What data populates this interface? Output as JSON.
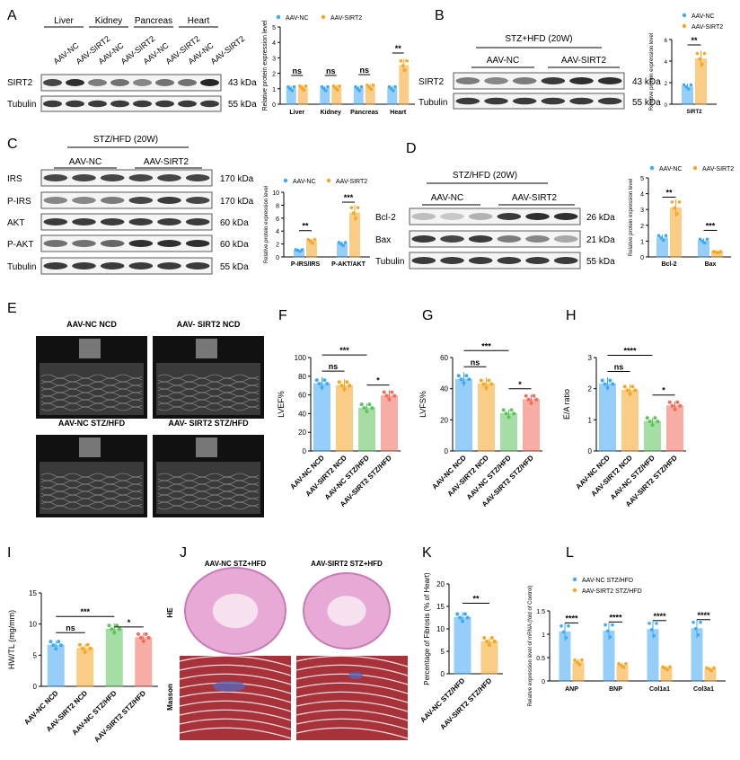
{
  "figure": {
    "panel_letters": [
      "A",
      "B",
      "C",
      "D",
      "E",
      "F",
      "G",
      "H",
      "I",
      "J",
      "K",
      "L"
    ],
    "colors": {
      "nc_blue": "#3fa9f5",
      "sirt2_orange": "#f5a623",
      "stz_nc_green": "#5cc45c",
      "stz_sirt2_red": "#f26b5b",
      "blot_band": "#1a1a1a",
      "he_pink": "#e7a9d6",
      "masson_red": "#a8323a"
    },
    "sig_marks": {
      "ns": "ns",
      "p01": "**",
      "p005": "*",
      "p001": "***",
      "p0001": "****"
    },
    "legend": {
      "nc": "AAV-NC",
      "sirt2": "AAV-SIRT2",
      "nc_stz": "AAV-NC STZ/HFD",
      "sirt2_stz": "AAV-SIRT2 STZ/HFD"
    }
  },
  "panelA": {
    "tissues": [
      "Liver",
      "Kidney",
      "Pancreas",
      "Heart"
    ],
    "lanes": [
      "AAV-NC",
      "AAV-SIRT2",
      "AAV-NC",
      "AAV-SIRT2",
      "AAV-NC",
      "AAV-SIRT2",
      "AAV-NC",
      "AAV-SIRT2"
    ],
    "rows": [
      "SIRT2",
      "Tubulin"
    ],
    "sizes": [
      "43 kDa",
      "55 kDa"
    ],
    "ylabel": "Relative protein expression level",
    "sigs": [
      "ns",
      "ns",
      "ns",
      "**"
    ]
  },
  "panelB": {
    "title": "STZ+HFD (20W)",
    "groups": [
      "AAV-NC",
      "AAV-SIRT2"
    ],
    "rows": [
      "SIRT2",
      "Tubulin"
    ],
    "sizes": [
      "43 kDa",
      "55 kDa"
    ],
    "ylabel": "Relative protein expression level",
    "xcat": "SIRT2",
    "sig": "**"
  },
  "panelC": {
    "title": "STZ/HFD (20W)",
    "groups": [
      "AAV-NC",
      "AAV-SIRT2"
    ],
    "rows": [
      "IRS",
      "P-IRS",
      "AKT",
      "P-AKT",
      "Tubulin"
    ],
    "sizes": [
      "170 kDa",
      "170 kDa",
      "60 kDa",
      "60 kDa",
      "55 kDa"
    ],
    "ylabel": "Relative protein expression level",
    "xcats": [
      "P-IRS/IRS",
      "P-AKT/AKT"
    ],
    "sigs": [
      "**",
      "***"
    ]
  },
  "panelD": {
    "title": "STZ/HFD (20W)",
    "groups": [
      "AAV-NC",
      "AAV-SIRT2"
    ],
    "rows": [
      "Bcl-2",
      "Bax",
      "Tubulin"
    ],
    "sizes": [
      "26 kDa",
      "21 kDa",
      "55 kDa"
    ],
    "ylabel": "Relative protein expression level",
    "xcats": [
      "Bcl-2",
      "Bax"
    ],
    "sigs": [
      "**",
      "***"
    ]
  },
  "panelE": {
    "titles": [
      "AAV-NC NCD",
      "AAV- SIRT2 NCD",
      "AAV-NC STZ/HFD",
      "AAV- SIRT2 STZ/HFD"
    ]
  },
  "groups4": [
    "AAV-NC NCD",
    "AAV-SIRT2 NCD",
    "AAV-NC STZ/HFD",
    "AAV-SIRT2 STZ/HFD"
  ],
  "panelJ": {
    "titles": [
      "AAV-NC STZ+HFD",
      "AAV-SIRT2 STZ+HFD"
    ],
    "rows": [
      "HE",
      "Masson"
    ]
  },
  "panelK": {
    "ylabel": "Percentage of Fibrosis (% of Heart)",
    "groups": [
      "AAV-NC STZ/HFD",
      "AAV-SIRT2 STZ/HFD"
    ],
    "sig": "**"
  },
  "panelL": {
    "ylabel": "Relative expression level of mRNA (fold of Control)",
    "sigs": [
      "****",
      "****",
      "****",
      "****"
    ]
  },
  "chart_data": [
    {
      "panel": "A",
      "type": "bar",
      "ylabel": "Relative protein expression level",
      "categories": [
        "Liver",
        "Kidney",
        "Pancreas",
        "Heart"
      ],
      "ylim": [
        0,
        5
      ],
      "yticks": [
        0,
        1,
        2,
        3,
        4,
        5
      ],
      "series": [
        {
          "name": "AAV-NC",
          "values": [
            1.0,
            1.0,
            1.0,
            1.0
          ]
        },
        {
          "name": "AAV-SIRT2",
          "values": [
            1.05,
            1.05,
            1.1,
            2.5
          ]
        }
      ]
    },
    {
      "panel": "B",
      "type": "bar",
      "ylabel": "Relative protein expression level",
      "categories": [
        "SIRT2"
      ],
      "ylim": [
        0,
        6
      ],
      "yticks": [
        0,
        2,
        4,
        6
      ],
      "series": [
        {
          "name": "AAV-NC",
          "values": [
            1.6
          ]
        },
        {
          "name": "AAV-SIRT2",
          "values": [
            4.2
          ]
        }
      ]
    },
    {
      "panel": "C",
      "type": "bar",
      "ylabel": "Relative protein expression level",
      "categories": [
        "P-IRS/IRS",
        "P-AKT/AKT"
      ],
      "ylim": [
        0,
        10
      ],
      "yticks": [
        0,
        2,
        4,
        6,
        8,
        10
      ],
      "series": [
        {
          "name": "AAV-NC",
          "values": [
            1.0,
            2.0
          ]
        },
        {
          "name": "AAV-SIRT2",
          "values": [
            2.4,
            6.8
          ]
        }
      ]
    },
    {
      "panel": "D",
      "type": "bar",
      "ylabel": "Relative protein expression level",
      "categories": [
        "Bcl-2",
        "Bax"
      ],
      "ylim": [
        0,
        5
      ],
      "yticks": [
        0,
        1,
        2,
        3,
        4,
        5
      ],
      "series": [
        {
          "name": "AAV-NC",
          "values": [
            1.2,
            1.0
          ]
        },
        {
          "name": "AAV-SIRT2",
          "values": [
            3.1,
            0.3
          ]
        }
      ]
    },
    {
      "panel": "F",
      "type": "bar",
      "ylabel": "LVEF%",
      "categories": [
        "AAV-NC NCD",
        "AAV-SIRT2 NCD",
        "AAV-NC STZ/HFD",
        "AAV-SIRT2 STZ/HFD"
      ],
      "values": [
        72,
        70,
        46,
        59
      ],
      "ylim": [
        0,
        100
      ],
      "yticks": [
        0,
        20,
        40,
        60,
        80,
        100
      ],
      "sigs": {
        "ns": "ns",
        "overall": "***",
        "pair": "*"
      }
    },
    {
      "panel": "G",
      "type": "bar",
      "ylabel": "LVFS%",
      "categories": [
        "AAV-NC NCD",
        "AAV-SIRT2 NCD",
        "AAV-NC STZ/HFD",
        "AAV-SIRT2 STZ/HFD"
      ],
      "values": [
        46,
        43,
        24,
        33
      ],
      "ylim": [
        0,
        60
      ],
      "yticks": [
        0,
        20,
        40,
        60
      ],
      "sigs": {
        "ns": "ns",
        "overall": "***",
        "pair": "*"
      }
    },
    {
      "panel": "H",
      "type": "bar",
      "ylabel": "E/A ratio",
      "categories": [
        "AAV-NC NCD",
        "AAV-SIRT2 NCD",
        "AAV-NC STZ/HFD",
        "AAV-SIRT2 STZ/HFD"
      ],
      "values": [
        2.15,
        1.95,
        0.95,
        1.45
      ],
      "ylim": [
        0,
        3
      ],
      "yticks": [
        0,
        1,
        2,
        3
      ],
      "sigs": {
        "ns": "ns",
        "overall": "****",
        "pair": "*"
      }
    },
    {
      "panel": "I",
      "type": "bar",
      "ylabel": "HW/TL (mg/mm)",
      "categories": [
        "AAV-NC NCD",
        "AAV-SIRT2 NCD",
        "AAV-NC STZ/HFD",
        "AAV-SIRT2 STZ/HFD"
      ],
      "values": [
        6.6,
        6.1,
        9.2,
        7.8
      ],
      "ylim": [
        0,
        15
      ],
      "yticks": [
        0,
        5,
        10,
        15
      ],
      "sigs": {
        "ns": "ns",
        "overall": "***",
        "pair": "*"
      }
    },
    {
      "panel": "K",
      "type": "bar",
      "ylabel": "Percentage of Fibrosis (% of Heart)",
      "categories": [
        "AAV-NC STZ/HFD",
        "AAV-SIRT2 STZ/HFD"
      ],
      "values": [
        12.5,
        7.2
      ],
      "ylim": [
        0,
        20
      ],
      "yticks": [
        0,
        5,
        10,
        15,
        20
      ]
    },
    {
      "panel": "L",
      "type": "bar",
      "ylabel": "Relative expression level of mRNA (fold of Control)",
      "categories": [
        "ANP",
        "BNP",
        "Col1a1",
        "Col3a1"
      ],
      "ylim": [
        0,
        1.5
      ],
      "yticks": [
        0,
        0.5,
        1.0,
        1.5
      ],
      "series": [
        {
          "name": "AAV-NC STZ/HFD",
          "values": [
            1.05,
            1.07,
            1.1,
            1.12
          ]
        },
        {
          "name": "AAV-SIRT2 STZ/HFD",
          "values": [
            0.4,
            0.33,
            0.27,
            0.25
          ]
        }
      ]
    }
  ]
}
